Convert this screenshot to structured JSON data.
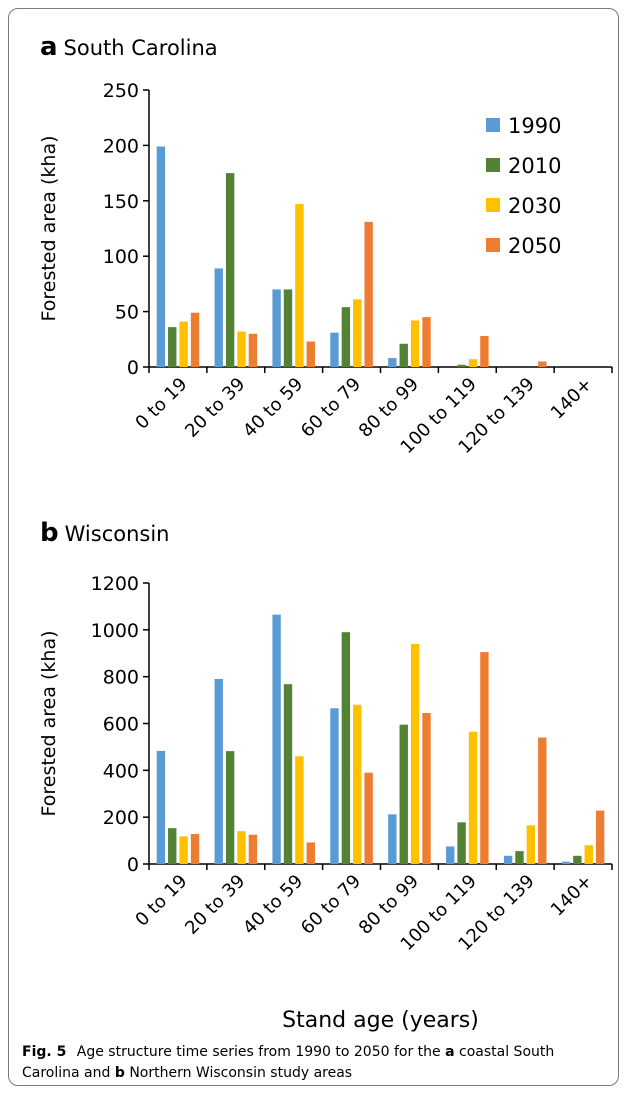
{
  "chart_data": [
    {
      "type": "bar",
      "panel_letter": "a",
      "title": "South Carolina",
      "xlabel": "",
      "ylabel": "Forested area (kha)",
      "ylim": [
        0,
        250
      ],
      "yticks": [
        0,
        50,
        100,
        150,
        200,
        250
      ],
      "categories": [
        "0 to 19",
        "20 to 39",
        "40 to 59",
        "60 to 79",
        "80 to 99",
        "100 to 119",
        "120 to 139",
        "140+"
      ],
      "legend_position": "top-right",
      "grid": false,
      "series": [
        {
          "name": "1990",
          "color": "#5b9bd5",
          "values": [
            199,
            89,
            70,
            31,
            8,
            0,
            0,
            0
          ]
        },
        {
          "name": "2010",
          "color": "#548235",
          "values": [
            36,
            175,
            70,
            54,
            21,
            2,
            0,
            0
          ]
        },
        {
          "name": "2030",
          "color": "#ffc000",
          "values": [
            41,
            32,
            147,
            61,
            42,
            7,
            0,
            0
          ]
        },
        {
          "name": "2050",
          "color": "#ed7d31",
          "values": [
            49,
            30,
            23,
            131,
            45,
            28,
            5,
            0
          ]
        }
      ]
    },
    {
      "type": "bar",
      "panel_letter": "b",
      "title": "Wisconsin",
      "xlabel": "Stand age (years)",
      "ylabel": "Forested area (kha)",
      "ylim": [
        0,
        1200
      ],
      "yticks": [
        0,
        200,
        400,
        600,
        800,
        1000,
        1200
      ],
      "categories": [
        "0 to 19",
        "20 to 39",
        "40 to 59",
        "60 to 79",
        "80 to 99",
        "100 to 119",
        "120 to 139",
        "140+"
      ],
      "grid": false,
      "series": [
        {
          "name": "1990",
          "color": "#5b9bd5",
          "values": [
            483,
            790,
            1065,
            665,
            212,
            75,
            35,
            10
          ]
        },
        {
          "name": "2010",
          "color": "#548235",
          "values": [
            153,
            482,
            768,
            990,
            595,
            178,
            55,
            35
          ]
        },
        {
          "name": "2030",
          "color": "#ffc000",
          "values": [
            118,
            140,
            460,
            680,
            940,
            565,
            165,
            80
          ]
        },
        {
          "name": "2050",
          "color": "#ed7d31",
          "values": [
            128,
            125,
            92,
            390,
            645,
            905,
            540,
            228
          ]
        }
      ]
    }
  ],
  "caption": {
    "prefix": "Fig. 5",
    "text_1": "Age structure time series from 1990 to 2050 for the",
    "bold_1": "a",
    "text_2": "coastal South Carolina and",
    "bold_2": "b",
    "text_3": "Northern Wisconsin study areas"
  }
}
